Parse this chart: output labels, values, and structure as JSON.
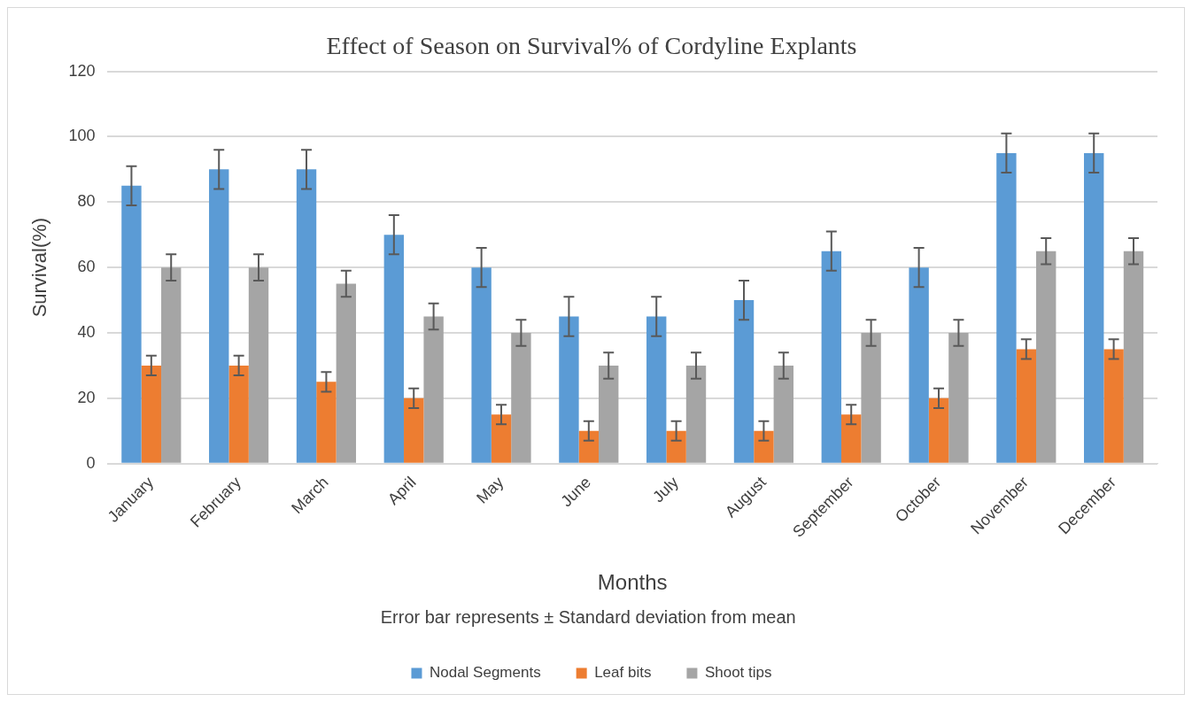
{
  "chart_data": {
    "type": "bar",
    "title": "Effect of Season on Survival% of Cordyline Explants",
    "xlabel": "Months",
    "ylabel": "Survival(%)",
    "annotations": [
      "Error bar represents ± Standard deviation from mean"
    ],
    "categories": [
      "January",
      "February",
      "March",
      "April",
      "May",
      "June",
      "July",
      "August",
      "September",
      "October",
      "November",
      "December"
    ],
    "series": [
      {
        "name": "Nodal Segments",
        "color": "#5b9bd5",
        "values": [
          85,
          90,
          90,
          70,
          60,
          45,
          45,
          50,
          65,
          60,
          95,
          95
        ],
        "errors": [
          6,
          6,
          6,
          6,
          6,
          6,
          6,
          6,
          6,
          6,
          6,
          6
        ]
      },
      {
        "name": "Leaf bits",
        "color": "#ed7d31",
        "values": [
          30,
          30,
          25,
          20,
          15,
          10,
          10,
          10,
          15,
          20,
          35,
          35
        ],
        "errors": [
          3,
          3,
          3,
          3,
          3,
          3,
          3,
          3,
          3,
          3,
          3,
          3
        ]
      },
      {
        "name": "Shoot tips",
        "color": "#a5a5a5",
        "values": [
          60,
          60,
          55,
          45,
          40,
          30,
          30,
          30,
          40,
          40,
          65,
          65
        ],
        "errors": [
          4,
          4,
          4,
          4,
          4,
          4,
          4,
          4,
          4,
          4,
          4,
          4
        ]
      }
    ],
    "ylim": [
      0,
      120
    ],
    "yticks": [
      0,
      20,
      40,
      60,
      80,
      100,
      120
    ],
    "grid": "y",
    "legend": "bottom"
  }
}
